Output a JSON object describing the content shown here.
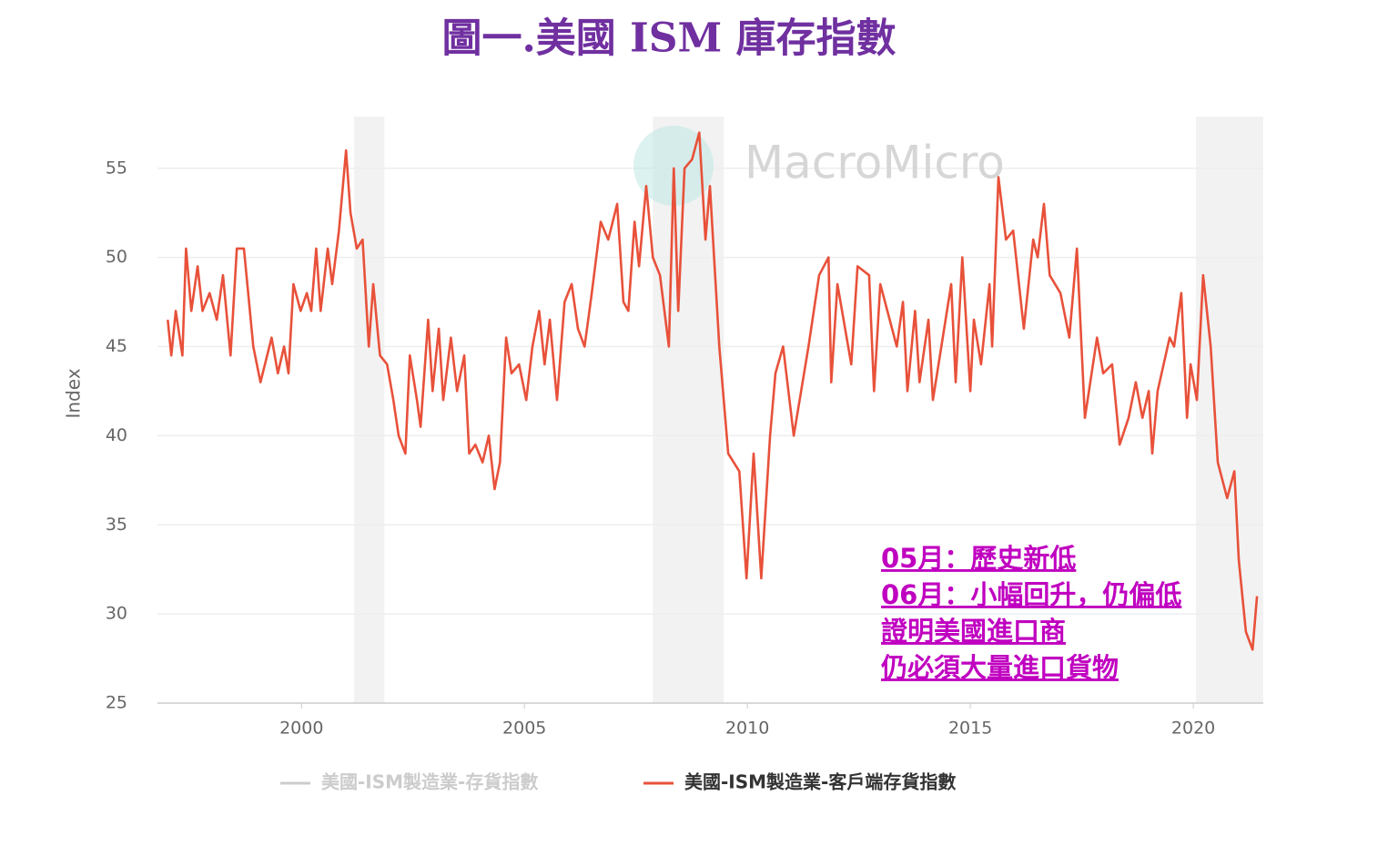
{
  "chart_data": {
    "type": "line",
    "title": "圖一.美國 ISM 庫存指數",
    "y_label": "Index",
    "watermark": "MacroMicro",
    "annotations": [
      "05月：歷史新低",
      "06月：小幅回升，仍偏低",
      "證明美國進口商",
      "仍必須大量進口貨物"
    ],
    "xlim": [
      1996.77,
      2021.57
    ],
    "xticks": [
      2000,
      2005,
      2010,
      2015,
      2020
    ],
    "ylim": [
      25,
      57.9
    ],
    "yticks": [
      25,
      30,
      35,
      40,
      45,
      50,
      55
    ],
    "grid": true,
    "shaded_ranges": [
      [
        2001.18,
        2001.86
      ],
      [
        2007.88,
        2009.47
      ],
      [
        2020.06,
        2021.57
      ]
    ],
    "hidden_series": [
      {
        "name": "美國-ISM製造業-存貨指數",
        "color": "#cccccc"
      }
    ],
    "x": [
      1997.0,
      1997.08,
      1997.18,
      1997.33,
      1997.41,
      1997.53,
      1997.67,
      1997.78,
      1997.94,
      1998.1,
      1998.24,
      1998.41,
      1998.55,
      1998.71,
      1998.92,
      1999.08,
      1999.33,
      1999.47,
      1999.61,
      1999.71,
      1999.82,
      1999.98,
      2000.12,
      2000.22,
      2000.33,
      2000.43,
      2000.59,
      2000.69,
      2000.84,
      2001.0,
      2001.1,
      2001.24,
      2001.37,
      2001.51,
      2001.61,
      2001.76,
      2001.92,
      2002.06,
      2002.18,
      2002.33,
      2002.43,
      2002.59,
      2002.67,
      2002.84,
      2002.94,
      2003.08,
      2003.18,
      2003.35,
      2003.49,
      2003.65,
      2003.76,
      2003.9,
      2004.06,
      2004.2,
      2004.33,
      2004.45,
      2004.59,
      2004.71,
      2004.88,
      2005.04,
      2005.18,
      2005.33,
      2005.45,
      2005.57,
      2005.73,
      2005.9,
      2006.06,
      2006.2,
      2006.35,
      2006.51,
      2006.71,
      2006.88,
      2007.08,
      2007.22,
      2007.33,
      2007.47,
      2007.57,
      2007.73,
      2007.88,
      2008.04,
      2008.24,
      2008.35,
      2008.45,
      2008.59,
      2008.76,
      2008.92,
      2009.06,
      2009.16,
      2009.37,
      2009.57,
      2009.82,
      2009.98,
      2010.14,
      2010.31,
      2010.51,
      2010.63,
      2010.8,
      2011.04,
      2011.37,
      2011.61,
      2011.82,
      2011.88,
      2012.02,
      2012.33,
      2012.47,
      2012.73,
      2012.84,
      2012.98,
      2013.35,
      2013.49,
      2013.59,
      2013.76,
      2013.86,
      2014.06,
      2014.16,
      2014.57,
      2014.67,
      2014.82,
      2015.0,
      2015.08,
      2015.24,
      2015.43,
      2015.49,
      2015.63,
      2015.8,
      2015.96,
      2016.2,
      2016.41,
      2016.51,
      2016.65,
      2016.78,
      2017.02,
      2017.22,
      2017.39,
      2017.57,
      2017.84,
      2017.98,
      2018.18,
      2018.35,
      2018.55,
      2018.71,
      2018.86,
      2019.0,
      2019.08,
      2019.2,
      2019.47,
      2019.57,
      2019.73,
      2019.86,
      2019.94,
      2020.08,
      2020.22,
      2020.39,
      2020.55,
      2020.76,
      2020.92,
      2021.02,
      2021.18,
      2021.33,
      2021.43
    ],
    "series": [
      {
        "name": "美國-ISM製造業-客戶端存貨指數",
        "color": "#e8513a",
        "values": [
          46.5,
          44.5,
          47,
          44.5,
          50.5,
          47,
          49.5,
          47,
          48,
          46.5,
          49,
          44.5,
          50.5,
          50.5,
          45,
          43,
          45.5,
          43.5,
          45,
          43.5,
          48.5,
          47,
          48,
          47,
          50.5,
          47,
          50.5,
          48.5,
          51.5,
          56,
          52.5,
          50.5,
          51,
          45,
          48.5,
          44.5,
          44,
          42,
          40,
          39,
          44.5,
          42,
          40.5,
          46.5,
          42.5,
          46,
          42,
          45.5,
          42.5,
          44.5,
          39,
          39.5,
          38.5,
          40,
          37,
          38.5,
          45.5,
          43.5,
          44,
          42,
          45,
          47,
          44,
          46.5,
          42,
          47.5,
          48.5,
          46,
          45,
          48,
          52,
          51,
          53,
          47.5,
          47,
          52,
          49.5,
          54,
          50,
          49,
          45,
          55,
          47,
          55,
          55.5,
          57,
          51,
          54,
          45,
          39,
          38,
          32,
          39,
          32,
          40,
          43.5,
          45,
          40,
          45,
          49,
          50,
          43,
          48.5,
          44,
          49.5,
          49,
          42.5,
          48.5,
          45,
          47.5,
          42.5,
          47,
          43,
          46.5,
          42,
          48.5,
          43,
          50,
          42.5,
          46.5,
          44,
          48.5,
          45,
          54.5,
          51,
          51.5,
          46,
          51,
          50,
          53,
          49,
          48,
          45.5,
          50.5,
          41,
          45.5,
          43.5,
          44,
          39.5,
          41,
          43,
          41,
          42.5,
          39,
          42.5,
          45.5,
          45,
          48,
          41,
          44,
          42,
          49,
          45,
          38.5,
          36.5,
          38,
          33,
          29,
          28,
          31
        ]
      }
    ],
    "legend": "bottom"
  }
}
